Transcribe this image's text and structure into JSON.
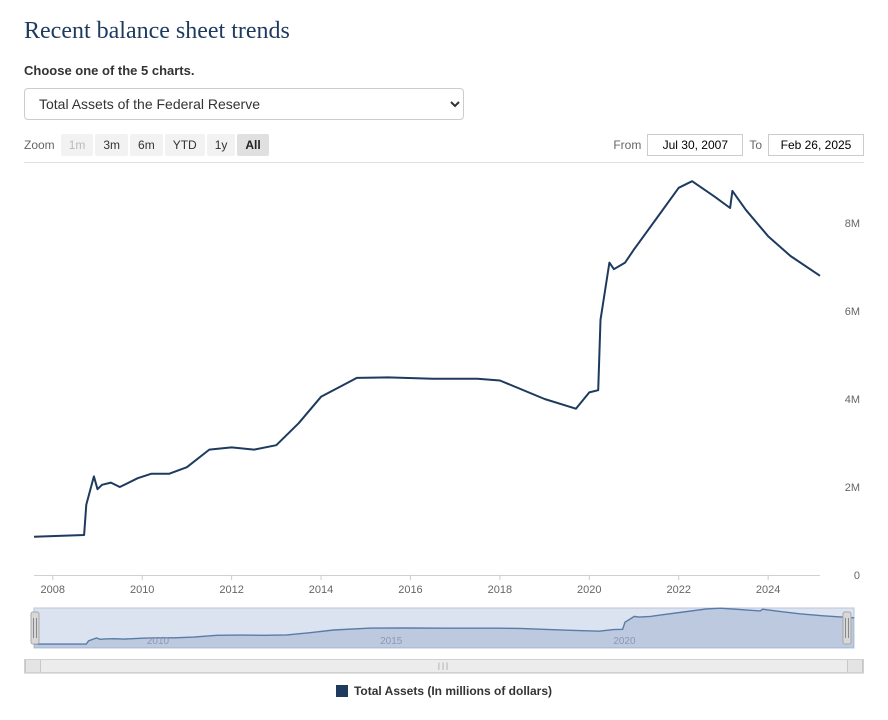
{
  "title": "Recent balance sheet trends",
  "chooser_label": "Choose one of the 5 charts.",
  "selector": {
    "value": "Total Assets of the Federal Reserve"
  },
  "zoom": {
    "label": "Zoom",
    "buttons": [
      {
        "label": "1m",
        "state": "disabled"
      },
      {
        "label": "3m",
        "state": "normal"
      },
      {
        "label": "6m",
        "state": "normal"
      },
      {
        "label": "YTD",
        "state": "normal"
      },
      {
        "label": "1y",
        "state": "normal"
      },
      {
        "label": "All",
        "state": "active"
      }
    ]
  },
  "range": {
    "from_label": "From",
    "from_value": "Jul 30, 2007",
    "to_label": "To",
    "to_value": "Feb 26, 2025"
  },
  "legend": {
    "swatch_color": "#1e3a5f",
    "label": "Total Assets (In millions of dollars)"
  },
  "chart": {
    "type": "line",
    "line_color": "#1e3a5f",
    "line_width": 2,
    "background_color": "#ffffff",
    "grid_color": "#e0e0e0",
    "axis_label_color": "#666666",
    "axis_label_fontsize": 11,
    "x": {
      "min": 2007.58,
      "max": 2025.16,
      "ticks": [
        2008,
        2010,
        2012,
        2014,
        2016,
        2018,
        2020,
        2022,
        2024
      ]
    },
    "y": {
      "min": 0,
      "max": 9000000,
      "ticks": [
        0,
        2000000,
        4000000,
        6000000,
        8000000
      ],
      "tick_labels": [
        "0",
        "2M",
        "4M",
        "6M",
        "8M"
      ]
    },
    "series": [
      {
        "x": 2007.58,
        "y": 870000
      },
      {
        "x": 2008.7,
        "y": 910000
      },
      {
        "x": 2008.75,
        "y": 1600000
      },
      {
        "x": 2008.92,
        "y": 2240000
      },
      {
        "x": 2009.0,
        "y": 1950000
      },
      {
        "x": 2009.1,
        "y": 2050000
      },
      {
        "x": 2009.3,
        "y": 2100000
      },
      {
        "x": 2009.5,
        "y": 2000000
      },
      {
        "x": 2009.9,
        "y": 2200000
      },
      {
        "x": 2010.2,
        "y": 2300000
      },
      {
        "x": 2010.6,
        "y": 2300000
      },
      {
        "x": 2011.0,
        "y": 2450000
      },
      {
        "x": 2011.5,
        "y": 2850000
      },
      {
        "x": 2012.0,
        "y": 2900000
      },
      {
        "x": 2012.5,
        "y": 2850000
      },
      {
        "x": 2013.0,
        "y": 2950000
      },
      {
        "x": 2013.5,
        "y": 3450000
      },
      {
        "x": 2014.0,
        "y": 4050000
      },
      {
        "x": 2014.8,
        "y": 4480000
      },
      {
        "x": 2015.5,
        "y": 4490000
      },
      {
        "x": 2016.5,
        "y": 4460000
      },
      {
        "x": 2017.5,
        "y": 4460000
      },
      {
        "x": 2018.0,
        "y": 4420000
      },
      {
        "x": 2019.0,
        "y": 4000000
      },
      {
        "x": 2019.7,
        "y": 3780000
      },
      {
        "x": 2020.0,
        "y": 4150000
      },
      {
        "x": 2020.2,
        "y": 4200000
      },
      {
        "x": 2020.25,
        "y": 5800000
      },
      {
        "x": 2020.45,
        "y": 7100000
      },
      {
        "x": 2020.55,
        "y": 6950000
      },
      {
        "x": 2020.8,
        "y": 7100000
      },
      {
        "x": 2021.0,
        "y": 7400000
      },
      {
        "x": 2021.5,
        "y": 8100000
      },
      {
        "x": 2022.0,
        "y": 8800000
      },
      {
        "x": 2022.3,
        "y": 8950000
      },
      {
        "x": 2022.8,
        "y": 8600000
      },
      {
        "x": 2023.15,
        "y": 8340000
      },
      {
        "x": 2023.2,
        "y": 8730000
      },
      {
        "x": 2023.5,
        "y": 8300000
      },
      {
        "x": 2024.0,
        "y": 7700000
      },
      {
        "x": 2024.5,
        "y": 7250000
      },
      {
        "x": 2025.16,
        "y": 6800000
      }
    ]
  },
  "navigator": {
    "background_color": "#c9d4e8",
    "line_color": "#5a7ba8",
    "handle_color": "#d8d8d8",
    "x_ticks": [
      2010,
      2015,
      2020
    ],
    "x_tick_color": "#8a98b5"
  }
}
